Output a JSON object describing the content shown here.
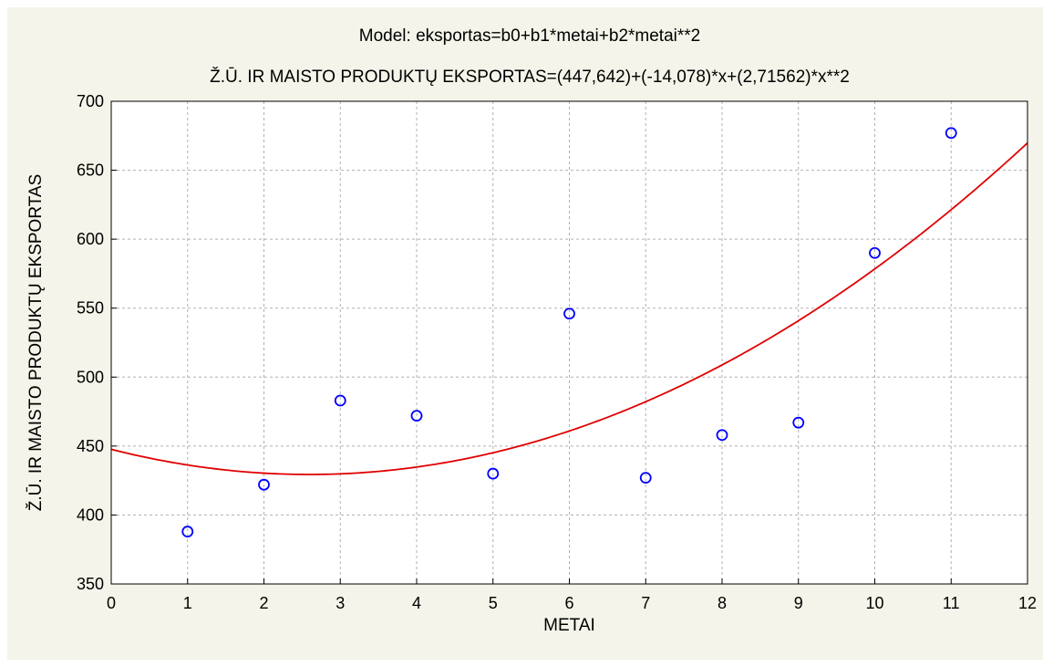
{
  "chart_data": {
    "type": "scatter",
    "title": "Model: eksportas=b0+b1*metai+b2*metai**2",
    "subtitle": "Ž.Ū. IR MAISTO PRODUKTŲ EKSPORTAS=(447,642)+(-14,078)*x+(2,71562)*x**2",
    "xlabel": "METAI",
    "ylabel": "Ž.Ū. IR MAISTO PRODUKTŲ EKSPORTAS",
    "xlim": [
      0,
      12
    ],
    "ylim": [
      350,
      700
    ],
    "x_ticks": [
      "0",
      "1",
      "2",
      "3",
      "4",
      "5",
      "6",
      "7",
      "8",
      "9",
      "10",
      "11",
      "12"
    ],
    "y_ticks": [
      "350",
      "400",
      "450",
      "500",
      "550",
      "600",
      "650",
      "700"
    ],
    "grid": true,
    "x": [
      1,
      2,
      3,
      4,
      5,
      6,
      7,
      8,
      9,
      10,
      11
    ],
    "y": [
      388,
      422,
      483,
      472,
      430,
      546,
      427,
      458,
      467,
      590,
      677
    ],
    "fit": {
      "type": "quadratic",
      "coefficients": [
        447.642,
        -14.078,
        2.71562
      ]
    },
    "colors": {
      "points": "#0000ff",
      "fit_line": "#e00000",
      "grid": "#b0b0b0",
      "background": "#f4f4ea",
      "plot_background": "#ffffff"
    }
  }
}
